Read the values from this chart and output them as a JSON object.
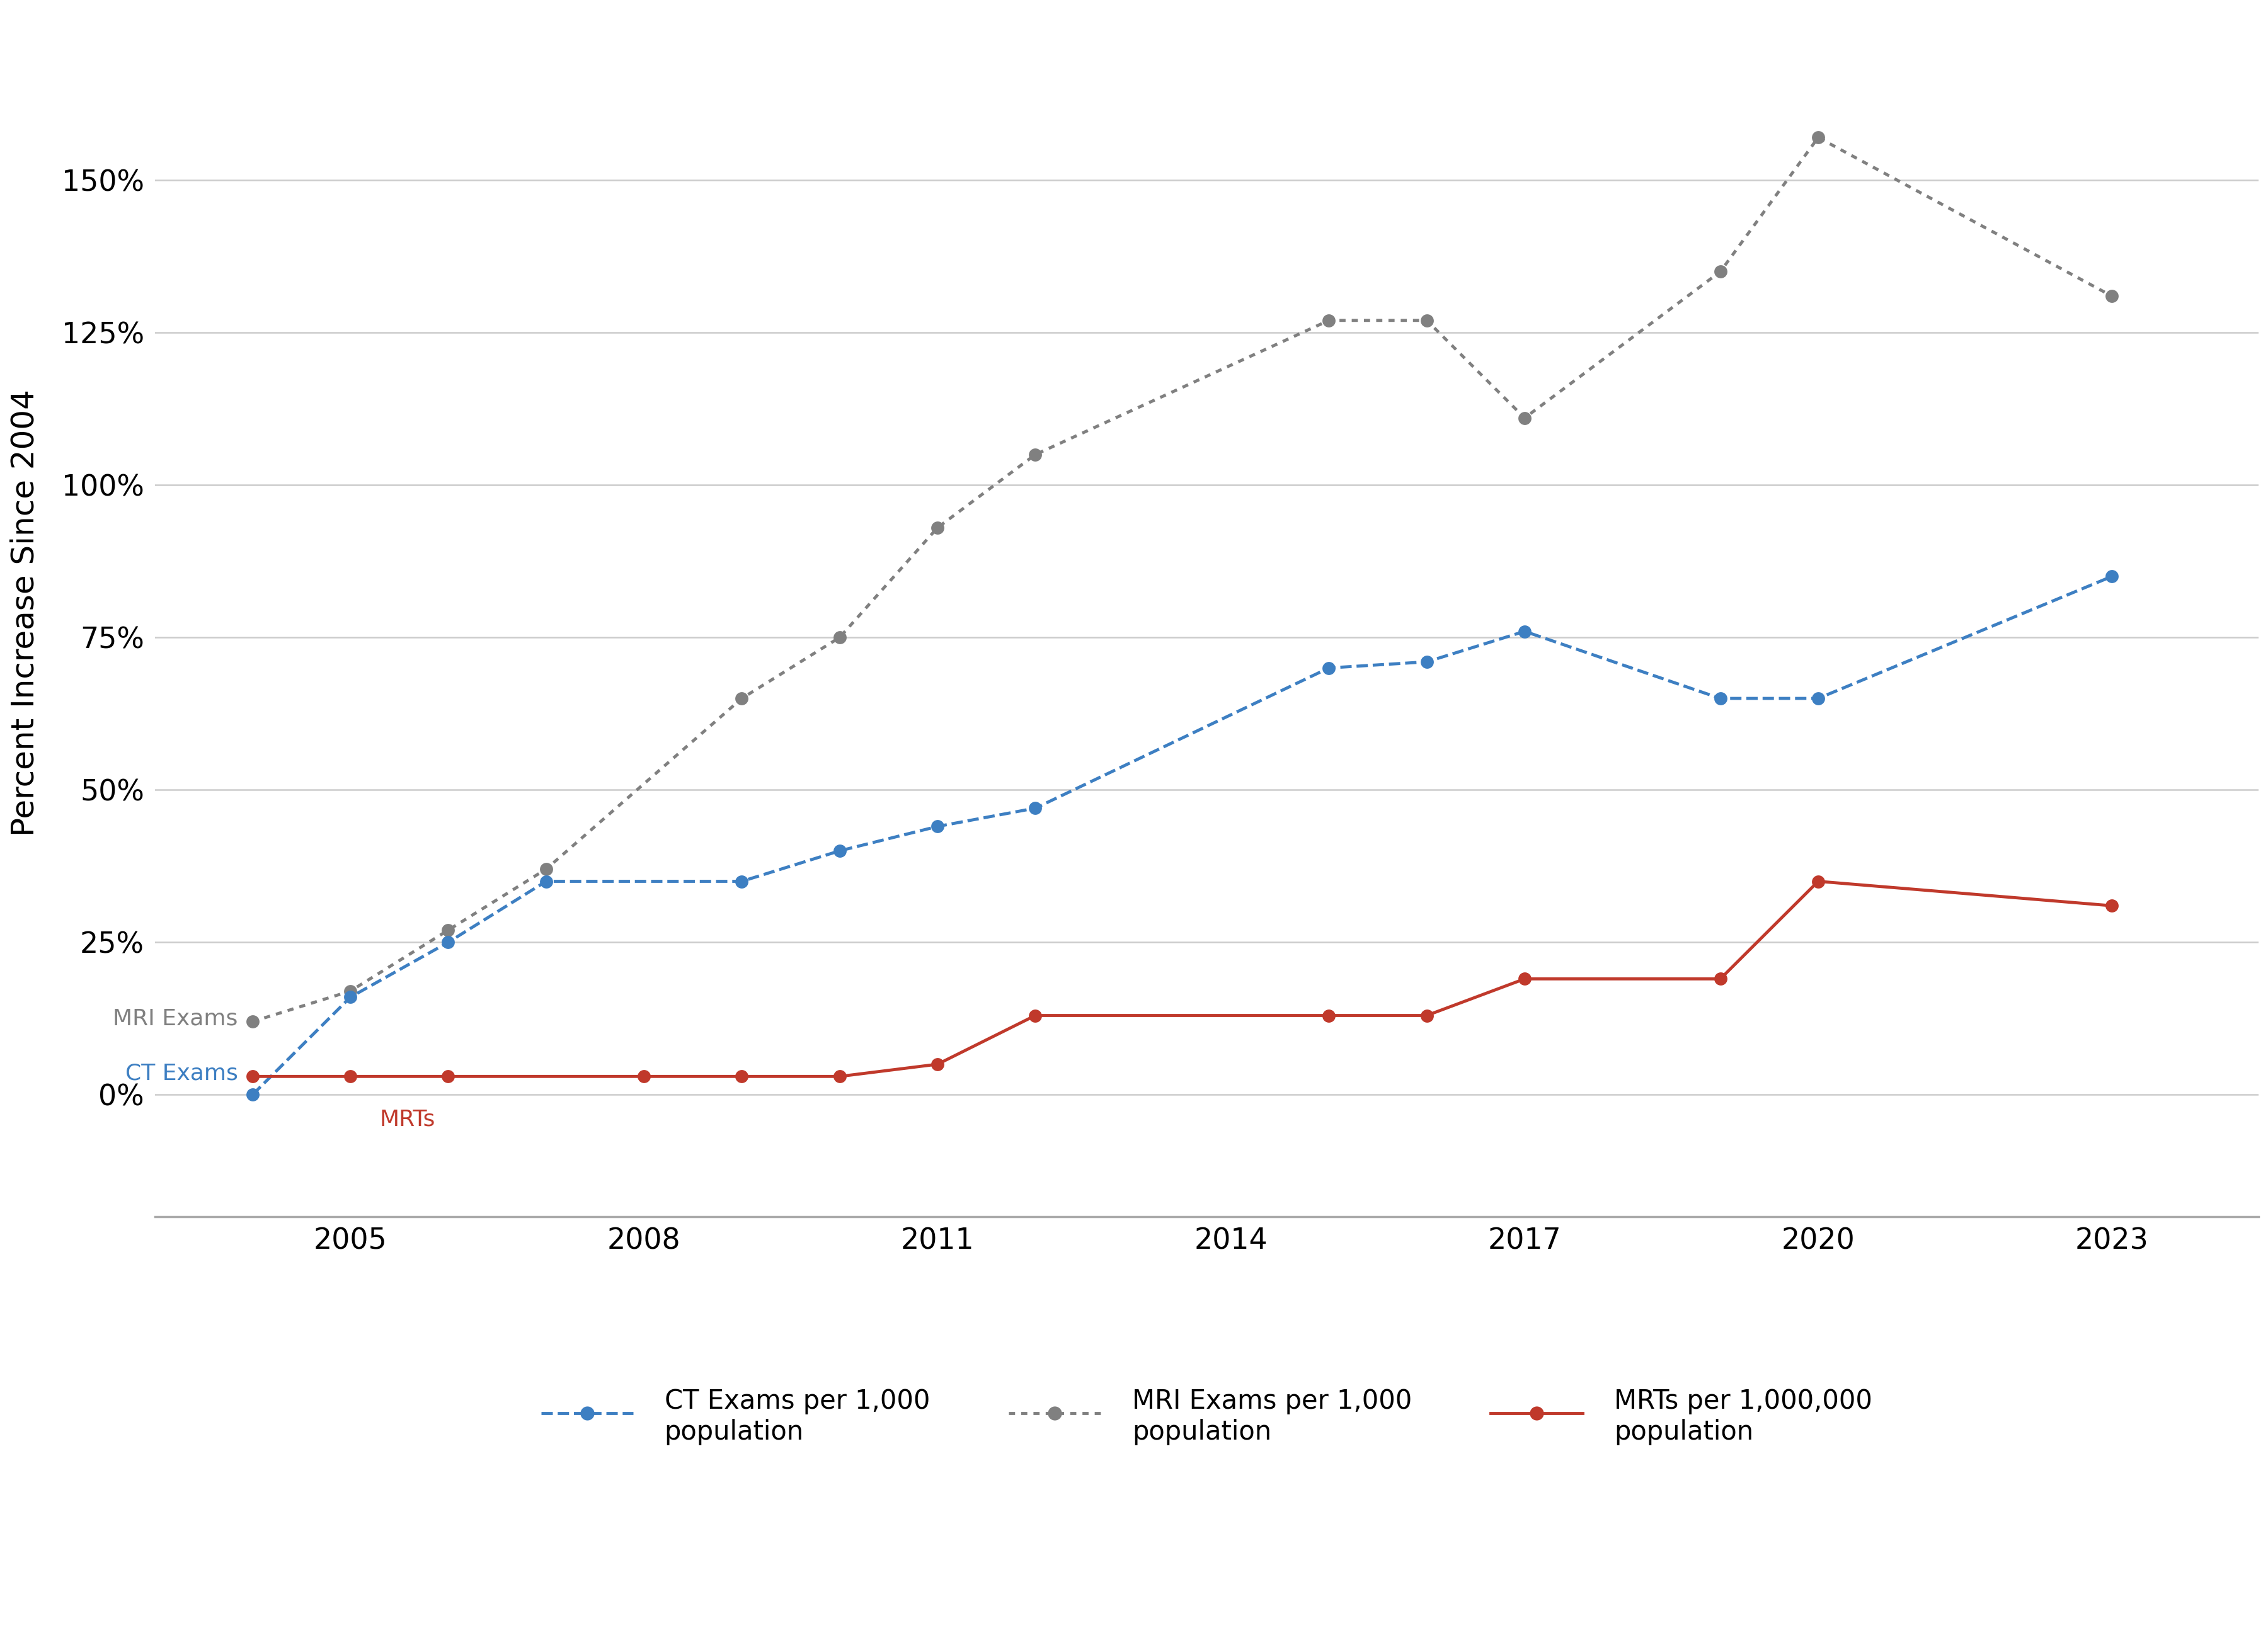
{
  "years_ct": [
    2004,
    2005,
    2006,
    2007,
    2009,
    2010,
    2011,
    2012,
    2015,
    2016,
    2017,
    2019,
    2020,
    2023
  ],
  "ct_values": [
    0,
    16,
    25,
    35,
    35,
    40,
    44,
    47,
    70,
    71,
    76,
    65,
    65,
    85
  ],
  "years_mri": [
    2004,
    2005,
    2006,
    2007,
    2009,
    2010,
    2011,
    2012,
    2015,
    2016,
    2017,
    2019,
    2020,
    2023
  ],
  "mri_values": [
    12,
    17,
    27,
    37,
    65,
    75,
    93,
    105,
    127,
    127,
    111,
    135,
    157,
    131
  ],
  "years_mrt": [
    2004,
    2005,
    2006,
    2008,
    2009,
    2010,
    2011,
    2012,
    2015,
    2016,
    2017,
    2019,
    2020,
    2023
  ],
  "mrt_values": [
    3,
    3,
    3,
    3,
    3,
    3,
    5,
    13,
    13,
    13,
    19,
    19,
    35,
    31
  ],
  "ct_color": "#3D7FC2",
  "mri_color": "#808080",
  "mrt_color": "#C0392B",
  "ylabel": "Percent Increase Since 2004",
  "ylim": [
    -20,
    178
  ],
  "yticks": [
    0,
    25,
    50,
    75,
    100,
    125,
    150
  ],
  "ytick_labels": [
    "0%",
    "25%",
    "50%",
    "75%",
    "100%",
    "125%",
    "150%"
  ],
  "xticks": [
    2005,
    2008,
    2011,
    2014,
    2017,
    2020,
    2023
  ],
  "xlim": [
    2003.0,
    2024.5
  ],
  "background_color": "#ffffff",
  "legend_ct": "CT Exams per 1,000\npopulation",
  "legend_mri": "MRI Exams per 1,000\npopulation",
  "legend_mrt": "MRTs per 1,000,000\npopulation",
  "annotation_mri_text": "MRI Exams",
  "annotation_ct_text": "CT Exams",
  "annotation_mrt_text": "MRTs",
  "grid_color": "#CCCCCC",
  "spine_color": "#AAAAAA"
}
